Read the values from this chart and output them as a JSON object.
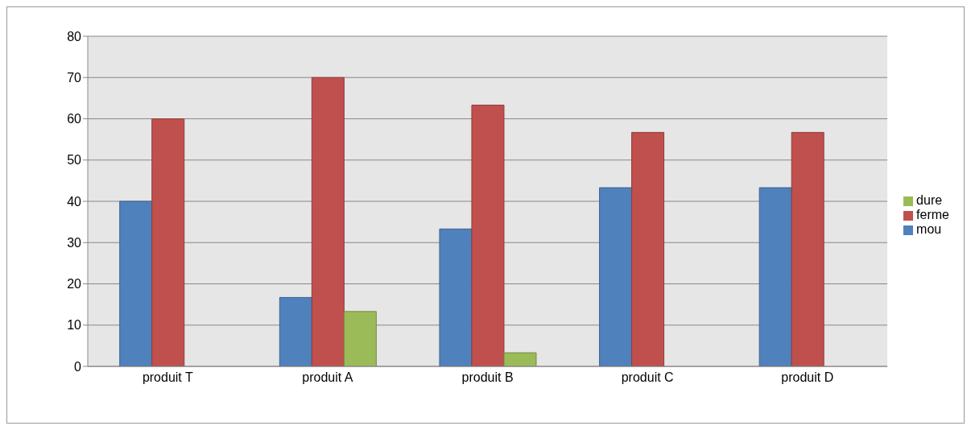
{
  "chart_data": {
    "type": "bar",
    "categories": [
      "produit T",
      "produit A",
      "produit B",
      "produit C",
      "produit D"
    ],
    "series": [
      {
        "name": "mou",
        "color": "#4f81bd",
        "values": [
          40,
          16.7,
          33.3,
          43.3,
          43.3
        ]
      },
      {
        "name": "ferme",
        "color": "#c0504d",
        "values": [
          60,
          70,
          63.3,
          56.7,
          56.7
        ]
      },
      {
        "name": "dure",
        "color": "#9bbb59",
        "values": [
          0,
          13.3,
          3.3,
          0,
          0
        ]
      }
    ],
    "ylim": [
      0,
      80
    ],
    "yticks": [
      0,
      10,
      20,
      30,
      40,
      50,
      60,
      70,
      80
    ],
    "grid": "y",
    "legend": "right"
  }
}
